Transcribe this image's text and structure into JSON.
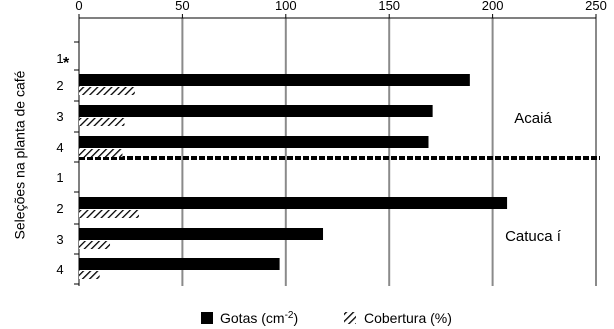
{
  "chart_data": {
    "type": "bar",
    "orientation": "horizontal",
    "ylabel": "Seleções na planta de café",
    "xlim": [
      0,
      250
    ],
    "x_ticks": [
      "0",
      "50",
      "100",
      "150",
      "200",
      "250"
    ],
    "x_tick_values": [
      0,
      50,
      100,
      150,
      200,
      250
    ],
    "grid": true,
    "annotation": "*",
    "legend_position": "bottom",
    "groups": [
      {
        "label": "Acaiá",
        "categories": [
          "1",
          "2",
          "3",
          "4"
        ],
        "gotas": [
          0,
          189,
          171,
          169
        ],
        "cobertura": [
          0,
          27,
          22,
          21
        ]
      },
      {
        "label": "Catuca í",
        "categories": [
          "1",
          "2",
          "3",
          "4"
        ],
        "gotas": [
          0,
          207,
          118,
          97
        ],
        "cobertura": [
          0,
          29,
          15,
          10
        ]
      }
    ],
    "series": [
      {
        "name": "Gotas (cm",
        "superscript": "-2",
        "suffix": ")",
        "color": "#000000",
        "pattern": "solid"
      },
      {
        "name": "Cobertura (%)",
        "color": "#000000",
        "pattern": "hatch"
      }
    ]
  }
}
